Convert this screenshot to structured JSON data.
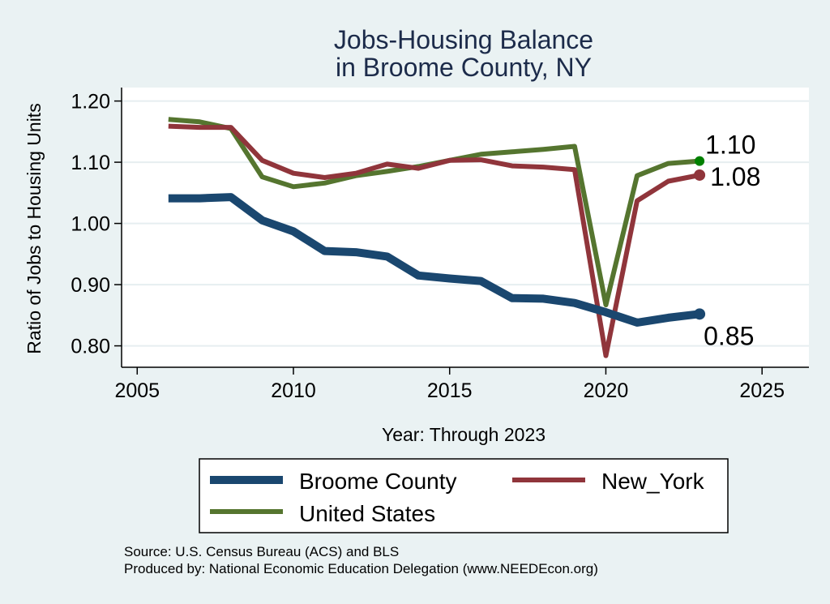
{
  "chart_data": {
    "type": "line",
    "title": [
      "Jobs-Housing Balance",
      "in Broome County, NY"
    ],
    "xlabel": "Year: Through 2023",
    "ylabel": "Ratio of Jobs to Housing Units",
    "xlim": [
      2004.5,
      2026.5
    ],
    "ylim": [
      0.765,
      1.222
    ],
    "xticks": [
      2005,
      2010,
      2015,
      2020,
      2025
    ],
    "yticks": [
      0.8,
      0.9,
      1.0,
      1.1,
      1.2
    ],
    "ytick_labels": [
      "0.80",
      "0.90",
      "1.00",
      "1.10",
      "1.20"
    ],
    "grid": true,
    "x": [
      2006,
      2007,
      2008,
      2009,
      2010,
      2011,
      2012,
      2013,
      2014,
      2015,
      2016,
      2017,
      2018,
      2019,
      2020,
      2021,
      2022,
      2023
    ],
    "series": [
      {
        "name": "Broome County",
        "color": "#1a476f",
        "values": [
          1.041,
          1.041,
          1.043,
          1.005,
          0.987,
          0.955,
          0.953,
          0.946,
          0.915,
          0.91,
          0.906,
          0.878,
          0.877,
          0.87,
          0.855,
          0.838,
          0.846,
          0.852
        ],
        "end_label": "0.85"
      },
      {
        "name": "New_York",
        "color": "#90353b",
        "values": [
          1.159,
          1.157,
          1.157,
          1.103,
          1.082,
          1.075,
          1.082,
          1.097,
          1.09,
          1.103,
          1.104,
          1.094,
          1.092,
          1.088,
          0.784,
          1.037,
          1.069,
          1.079
        ],
        "end_label": "1.08"
      },
      {
        "name": "United States",
        "color": "#55752f",
        "values": [
          1.17,
          1.166,
          1.155,
          1.076,
          1.06,
          1.066,
          1.078,
          1.085,
          1.093,
          1.103,
          1.113,
          1.117,
          1.121,
          1.126,
          0.867,
          1.078,
          1.098,
          1.102
        ],
        "end_label": "1.10"
      }
    ],
    "end_marker_colors": [
      "#1a476f",
      "#90353b",
      "#008000"
    ],
    "legend": {
      "placement": "bottom",
      "entries": [
        "Broome County",
        "New_York",
        "United States"
      ]
    },
    "notes": [
      "Source: U.S. Census Bureau (ACS) and BLS",
      "Produced by: National Economic Education Delegation (www.NEEDEcon.org)"
    ]
  }
}
